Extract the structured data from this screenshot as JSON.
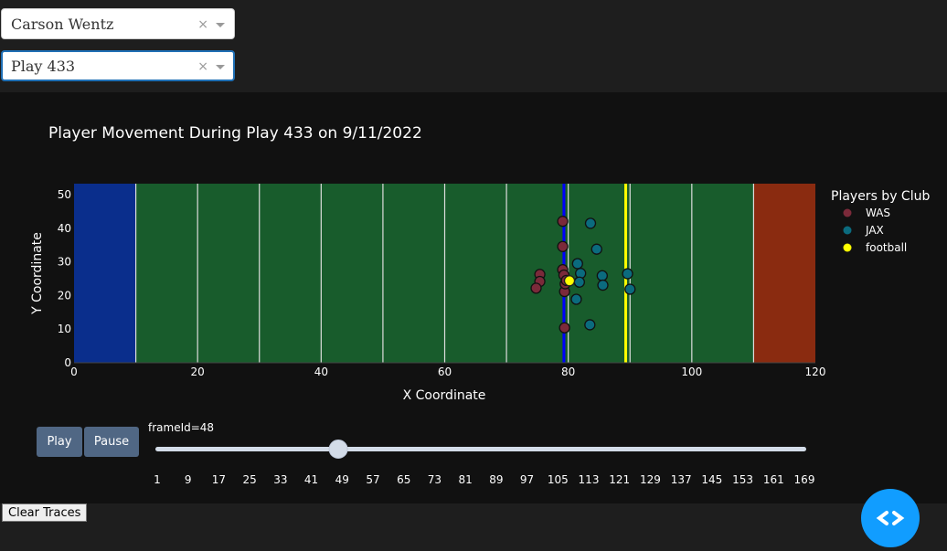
{
  "player_select": {
    "value": "Carson Wentz",
    "clear": "×"
  },
  "play_select": {
    "value": "Play 433",
    "clear": "×"
  },
  "colors": {
    "was": "#7b2a3a",
    "jax": "#0b6b7e",
    "football": "#ffff00",
    "field": "#185c2c",
    "left_endzone": "#0a2e8c",
    "right_endzone": "#8a2b10",
    "line_of_scrimmage": "#0000ff",
    "first_down": "#ffff00"
  },
  "chart_data": {
    "type": "scatter",
    "title": "Player Movement During Play 433 on 9/11/2022",
    "xlabel": "X Coordinate",
    "ylabel": "Y Coordinate",
    "xlim": [
      0,
      120
    ],
    "ylim": [
      0,
      53.3
    ],
    "x_ticks": [
      0,
      20,
      40,
      60,
      80,
      100,
      120
    ],
    "y_ticks": [
      0,
      10,
      20,
      30,
      40,
      50
    ],
    "legend_title": "Players by Club",
    "legend_position": "right",
    "line_of_scrimmage": 79.3,
    "first_down_line": 89.3,
    "series": [
      {
        "name": "WAS",
        "points": [
          [
            79.1,
            42.1
          ],
          [
            79.1,
            34.6
          ],
          [
            79.1,
            27.7
          ],
          [
            79.3,
            26.1
          ],
          [
            79.4,
            21.2
          ],
          [
            79.4,
            10.4
          ],
          [
            75.4,
            26.3
          ],
          [
            75.4,
            24.2
          ],
          [
            74.8,
            22.2
          ],
          [
            79.5,
            23.5
          ],
          [
            79.7,
            24.5
          ]
        ]
      },
      {
        "name": "JAX",
        "points": [
          [
            83.6,
            41.5
          ],
          [
            84.6,
            33.8
          ],
          [
            81.5,
            29.5
          ],
          [
            82.0,
            26.6
          ],
          [
            81.8,
            24.0
          ],
          [
            85.5,
            25.9
          ],
          [
            85.6,
            23.1
          ],
          [
            89.6,
            26.5
          ],
          [
            90.0,
            21.9
          ],
          [
            81.3,
            18.9
          ],
          [
            83.5,
            11.3
          ]
        ]
      },
      {
        "name": "football",
        "points": [
          [
            80.2,
            24.4
          ]
        ]
      }
    ]
  },
  "frame_label": "frameId=48",
  "slider": {
    "value": 48,
    "min": 1,
    "max": 169
  },
  "slider_ticks": [
    "1",
    "9",
    "17",
    "25",
    "33",
    "41",
    "49",
    "57",
    "65",
    "73",
    "81",
    "89",
    "97",
    "105",
    "113",
    "121",
    "129",
    "137",
    "145",
    "153",
    "161",
    "169"
  ],
  "buttons": {
    "play": "Play",
    "pause": "Pause",
    "clear": "Clear Traces"
  }
}
